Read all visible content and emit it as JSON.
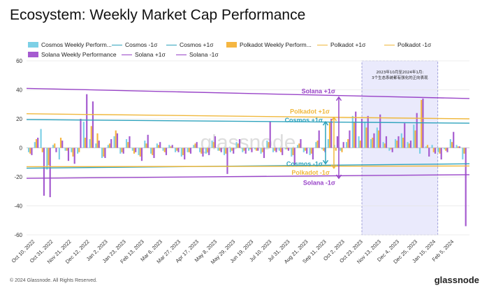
{
  "colors": {
    "cosmos_bar": "#7dd0e6",
    "cosmos_line": "#2ea3bd",
    "polkadot_bar": "#f5b642",
    "polkadot_line": "#f0b83c",
    "solana_bar": "#a55bd0",
    "solana_line": "#9944c8",
    "highlight": "#dcdcfa"
  },
  "chart_data": {
    "type": "bar",
    "title": "Ecosystem: Weekly Market Cap Performance",
    "ylim": [
      -60,
      60
    ],
    "yticks": [
      60,
      40,
      20,
      0,
      -20,
      -40,
      -60
    ],
    "grid": true,
    "legend_position": "top",
    "x_tick_labels": [
      "Oct 10, 2022",
      "Oct 31, 2022",
      "Nov 21, 2022",
      "Dec 12, 2022",
      "Jan 2, 2023",
      "Jan 23, 2023",
      "Feb 13, 2023",
      "Mar 6, 2023",
      "Mar 27, 2023",
      "Apr 17, 2023",
      "May 8, 2023",
      "May 29, 2023",
      "Jun 19, 2023",
      "Jul 10, 2023",
      "Jul 31, 2023",
      "Aug 21, 2023",
      "Sep 11, 2023",
      "Oct 2, 2023",
      "Oct 23, 2023",
      "Nov 13, 2023",
      "Dec 4, 2023",
      "Dec 25, 2023",
      "Jan 15, 2024",
      "Feb 5, 2024"
    ],
    "x_start": "2022-10-10",
    "x_end": "2024-02-12",
    "series": [
      {
        "name": "Cosmos Weekly Performance",
        "kind": "bar",
        "color": "#7dd0e6",
        "values": [
          -3,
          4,
          13,
          -15,
          2,
          -8,
          -2,
          -3,
          -4,
          18,
          6,
          3,
          -7,
          2,
          8,
          -4,
          6,
          -2,
          -5,
          5,
          -4,
          3,
          -2,
          2,
          -3,
          -6,
          -3,
          2,
          -3,
          -4,
          5,
          -2,
          -5,
          -3,
          4,
          -3,
          -2,
          -1,
          -4,
          5,
          -3,
          -2,
          -1,
          -6,
          2,
          -3,
          -5,
          4,
          -1,
          6,
          2,
          -2,
          4,
          22,
          8,
          18,
          6,
          14,
          4,
          -2,
          6,
          10,
          4,
          16,
          -4,
          1,
          2,
          -3,
          -1,
          6,
          2,
          -8
        ]
      },
      {
        "name": "Cosmos -1σ",
        "kind": "line",
        "color": "#2ea3bd",
        "values": [
          -14,
          -11
        ]
      },
      {
        "name": "Cosmos +1σ",
        "kind": "line",
        "color": "#2ea3bd",
        "values": [
          19.5,
          17
        ]
      },
      {
        "name": "Polkadot Weekly Performance",
        "kind": "bar",
        "color": "#f5b642",
        "values": [
          -4,
          6,
          -3,
          -12,
          3,
          7,
          -2,
          -6,
          -3,
          7,
          15,
          10,
          -6,
          3,
          12,
          -3,
          4,
          -4,
          -6,
          3,
          -5,
          2,
          -3,
          1,
          -2,
          -5,
          -3,
          3,
          -4,
          -3,
          4,
          -2,
          -4,
          -2,
          3,
          -2,
          -1,
          -2,
          -3,
          4,
          -2,
          -3,
          -1,
          -5,
          3,
          -2,
          -4,
          5,
          -2,
          18,
          -2,
          -3,
          6,
          18,
          5,
          14,
          7,
          12,
          3,
          -1,
          5,
          7,
          3,
          12,
          33,
          2,
          -3,
          -4,
          -2,
          4,
          1,
          -4
        ]
      },
      {
        "name": "Polkadot +1σ",
        "kind": "line",
        "color": "#f0b83c",
        "values": [
          23.5,
          20
        ]
      },
      {
        "name": "Polkadot -1σ",
        "kind": "line",
        "color": "#f0b83c",
        "values": [
          -13,
          -12.5
        ]
      },
      {
        "name": "Solana Weekly Performance",
        "kind": "bar",
        "color": "#a55bd0",
        "values": [
          -5,
          7,
          -33,
          -34,
          -3,
          5,
          -9,
          -11,
          20,
          37,
          32,
          5,
          -7,
          6,
          10,
          -4,
          8,
          -3,
          -9,
          9,
          -7,
          4,
          -5,
          2,
          -3,
          -8,
          -4,
          4,
          -6,
          -5,
          8,
          -3,
          -18,
          -4,
          6,
          -4,
          -3,
          -2,
          -7,
          18,
          -3,
          -5,
          -2,
          -12,
          6,
          -4,
          -8,
          12,
          -3,
          20,
          8,
          4,
          12,
          25,
          20,
          22,
          10,
          23,
          8,
          -3,
          8,
          17,
          5,
          24,
          34,
          -6,
          -4,
          -8,
          -3,
          11,
          1,
          -54
        ]
      },
      {
        "name": "Solana +1σ",
        "kind": "line",
        "color": "#9944c8",
        "values": [
          41,
          34
        ]
      },
      {
        "name": "Solana -1σ",
        "kind": "line",
        "color": "#9944c8",
        "values": [
          -21,
          -18.5
        ]
      }
    ],
    "highlight_range": {
      "label": "2023年10月至2024年1月:\n3个生态系统都有强化的正向表现",
      "start": "2023-10-16",
      "end": "2024-01-08"
    },
    "annotations": [
      {
        "text": "Solana +1σ",
        "color": "#9944c8",
        "y": 39
      },
      {
        "text": "Polkadot +1σ",
        "color": "#f0b83c",
        "y": 25
      },
      {
        "text": "Cosmos +1σ",
        "color": "#2ea3bd",
        "y": 19
      },
      {
        "text": "Cosmos -1σ",
        "color": "#2ea3bd",
        "y": -11
      },
      {
        "text": "Polkadot -1σ",
        "color": "#f0b83c",
        "y": -17
      },
      {
        "text": "Solana -1σ",
        "color": "#9944c8",
        "y": -24
      }
    ]
  },
  "legend": {
    "row1": [
      {
        "label": "Cosmos Weekly Perform...",
        "type": "rect",
        "color": "#7dd0e6"
      },
      {
        "label": "Cosmos -1σ",
        "type": "line",
        "color": "#2ea3bd"
      },
      {
        "label": "Cosmos +1σ",
        "type": "line",
        "color": "#2ea3bd"
      },
      {
        "label": "Polkadot Weekly Perform...",
        "type": "rect",
        "color": "#f5b642"
      },
      {
        "label": "Polkadot +1σ",
        "type": "line",
        "color": "#f0b83c"
      },
      {
        "label": "Polkadot -1σ",
        "type": "line",
        "color": "#f0b83c"
      }
    ],
    "row2": [
      {
        "label": "Solana Weekly Performance",
        "type": "rect",
        "color": "#a55bd0"
      },
      {
        "label": "Solana +1σ",
        "type": "line",
        "color": "#9944c8"
      },
      {
        "label": "Solana -1σ",
        "type": "line",
        "color": "#9944c8"
      }
    ]
  },
  "highlight_label_line1": "2023年10月至2024年1月:",
  "highlight_label_line2": "3个生态系统都有强化的正向表现",
  "watermark": "glassnode",
  "footer": "© 2024 Glassnode. All Rights Reserved.",
  "brand": "glassnode"
}
